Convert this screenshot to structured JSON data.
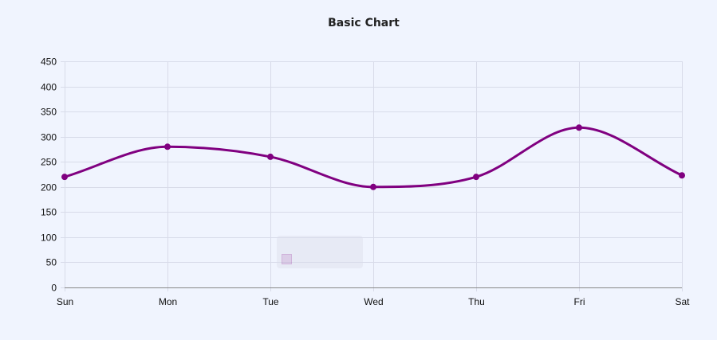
{
  "chart_data": {
    "type": "line",
    "title": "Basic Chart",
    "categories": [
      "Sun",
      "Mon",
      "Tue",
      "Wed",
      "Thu",
      "Fri",
      "Sat"
    ],
    "series": [
      {
        "name": "",
        "values": [
          220,
          280,
          260,
          200,
          220,
          318,
          223
        ],
        "color": "#800080"
      }
    ],
    "ylim": [
      0,
      450
    ],
    "yticks": [
      0,
      50,
      100,
      150,
      200,
      250,
      300,
      350,
      400,
      450
    ],
    "smooth": true,
    "grid": true,
    "legend": "bottom-center"
  }
}
